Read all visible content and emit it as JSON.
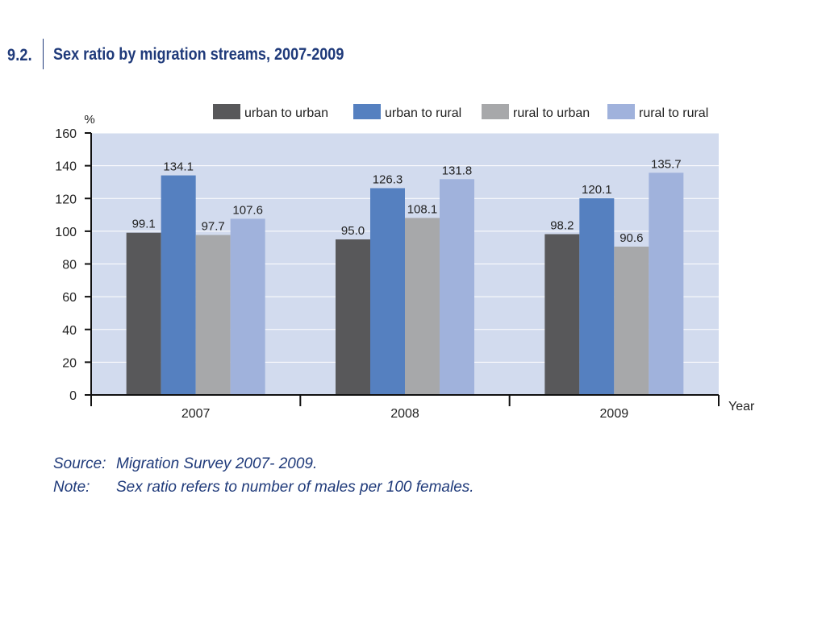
{
  "title": {
    "number": "9.2.",
    "text": "Sex ratio by migration streams, 2007-2009"
  },
  "chart_data": {
    "type": "bar",
    "title": "Sex ratio by migration streams, 2007-2009",
    "categories": [
      "2007",
      "2008",
      "2009"
    ],
    "series": [
      {
        "name": "urban to urban",
        "color": "#58585a",
        "values": [
          99.1,
          95.0,
          98.2
        ],
        "labels": [
          "99.1",
          "95.0",
          "98.2"
        ]
      },
      {
        "name": "urban to rural",
        "color": "#5580c0",
        "values": [
          134.1,
          126.3,
          120.1
        ],
        "labels": [
          "134.1",
          "126.3",
          "120.1"
        ]
      },
      {
        "name": "rural to urban",
        "color": "#a7a8aa",
        "values": [
          97.7,
          108.1,
          90.6
        ],
        "labels": [
          "97.7",
          "108.1",
          "90.6"
        ]
      },
      {
        "name": "rural to rural",
        "color": "#a0b2dc",
        "values": [
          107.6,
          131.8,
          135.7
        ],
        "labels": [
          "107.6",
          "131.8",
          "135.7"
        ]
      }
    ],
    "xlabel": "Year",
    "ylabel": "%",
    "ylim": [
      0,
      160
    ],
    "yticks": [
      0,
      20,
      40,
      60,
      80,
      100,
      120,
      140,
      160
    ],
    "grid": true,
    "legend_position": "top",
    "plot_background": "#d2dbee"
  },
  "footer": {
    "source_label": "Source:",
    "source_text": "Migration Survey 2007- 2009.",
    "note_label": "Note:",
    "note_text": "Sex ratio refers to number of males per 100 females."
  }
}
